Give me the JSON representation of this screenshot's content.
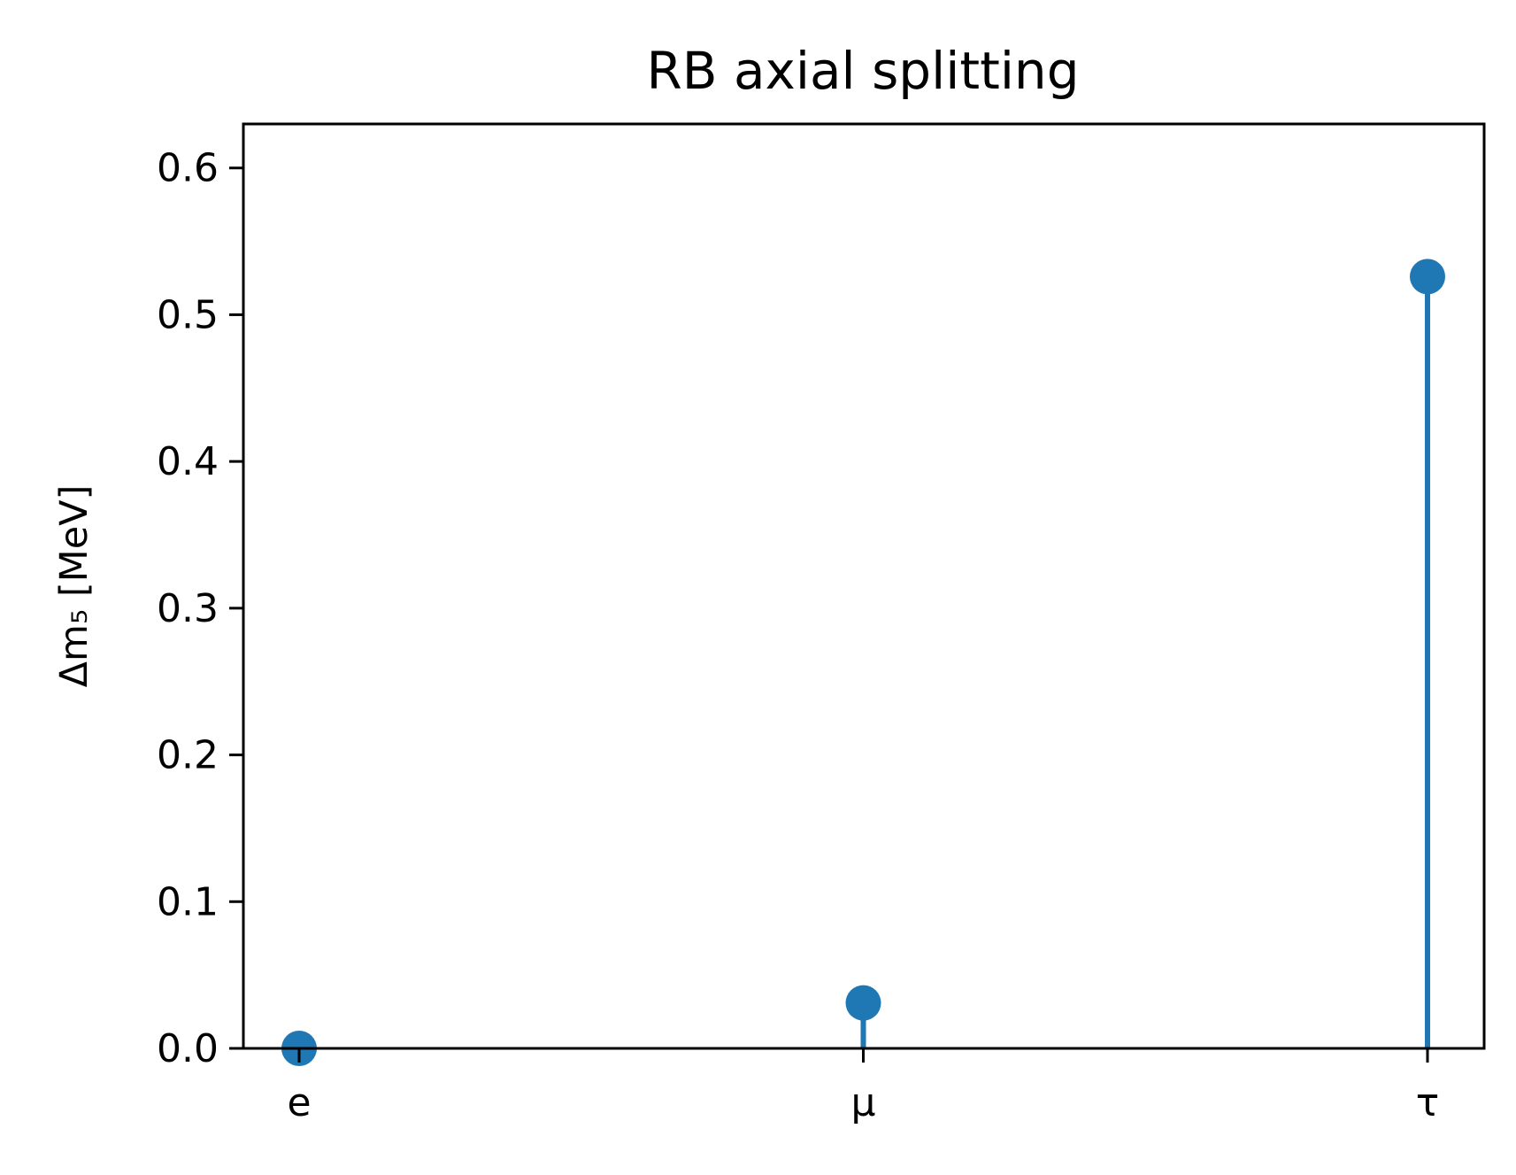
{
  "chart_data": {
    "type": "stem",
    "title": "RB axial splitting",
    "xlabel": "",
    "ylabel": "Δm₅ [MeV]",
    "categories": [
      "e",
      "μ",
      "τ"
    ],
    "values": [
      0.0,
      0.031,
      0.526
    ],
    "ylim": [
      0,
      0.63
    ],
    "yticks": [
      0.0,
      0.1,
      0.2,
      0.3,
      0.4,
      0.5,
      0.6
    ],
    "ytick_labels": [
      "0.0",
      "0.1",
      "0.2",
      "0.3",
      "0.4",
      "0.5",
      "0.6"
    ],
    "grid": false,
    "color": "#1f77b4"
  }
}
